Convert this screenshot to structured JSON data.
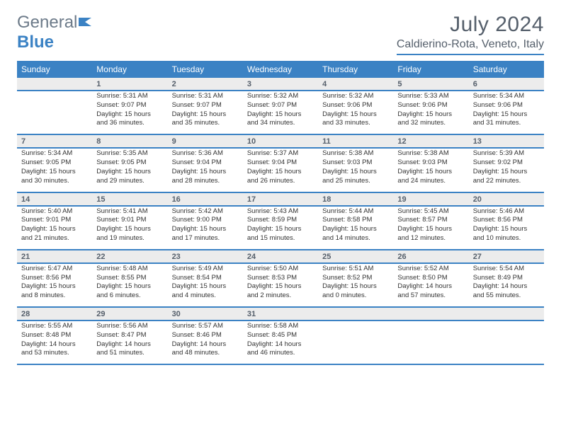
{
  "brand": {
    "text1": "General",
    "text2": "Blue"
  },
  "title": "July 2024",
  "location": "Caldierino-Rota, Veneto, Italy",
  "colors": {
    "header_bg": "#3b82c4",
    "header_text": "#ffffff",
    "daynum_bg": "#ececec",
    "rule": "#3b82c4",
    "body_text": "#333333",
    "muted_text": "#555f6b",
    "background": "#ffffff"
  },
  "fonts": {
    "body_size": 9.5,
    "header_size": 12,
    "title_size": 30,
    "location_size": 16
  },
  "day_headers": [
    "Sunday",
    "Monday",
    "Tuesday",
    "Wednesday",
    "Thursday",
    "Friday",
    "Saturday"
  ],
  "weeks": [
    [
      {
        "num": "",
        "sunrise": "",
        "sunset": "",
        "daylight": ""
      },
      {
        "num": "1",
        "sunrise": "Sunrise: 5:31 AM",
        "sunset": "Sunset: 9:07 PM",
        "daylight": "Daylight: 15 hours and 36 minutes."
      },
      {
        "num": "2",
        "sunrise": "Sunrise: 5:31 AM",
        "sunset": "Sunset: 9:07 PM",
        "daylight": "Daylight: 15 hours and 35 minutes."
      },
      {
        "num": "3",
        "sunrise": "Sunrise: 5:32 AM",
        "sunset": "Sunset: 9:07 PM",
        "daylight": "Daylight: 15 hours and 34 minutes."
      },
      {
        "num": "4",
        "sunrise": "Sunrise: 5:32 AM",
        "sunset": "Sunset: 9:06 PM",
        "daylight": "Daylight: 15 hours and 33 minutes."
      },
      {
        "num": "5",
        "sunrise": "Sunrise: 5:33 AM",
        "sunset": "Sunset: 9:06 PM",
        "daylight": "Daylight: 15 hours and 32 minutes."
      },
      {
        "num": "6",
        "sunrise": "Sunrise: 5:34 AM",
        "sunset": "Sunset: 9:06 PM",
        "daylight": "Daylight: 15 hours and 31 minutes."
      }
    ],
    [
      {
        "num": "7",
        "sunrise": "Sunrise: 5:34 AM",
        "sunset": "Sunset: 9:05 PM",
        "daylight": "Daylight: 15 hours and 30 minutes."
      },
      {
        "num": "8",
        "sunrise": "Sunrise: 5:35 AM",
        "sunset": "Sunset: 9:05 PM",
        "daylight": "Daylight: 15 hours and 29 minutes."
      },
      {
        "num": "9",
        "sunrise": "Sunrise: 5:36 AM",
        "sunset": "Sunset: 9:04 PM",
        "daylight": "Daylight: 15 hours and 28 minutes."
      },
      {
        "num": "10",
        "sunrise": "Sunrise: 5:37 AM",
        "sunset": "Sunset: 9:04 PM",
        "daylight": "Daylight: 15 hours and 26 minutes."
      },
      {
        "num": "11",
        "sunrise": "Sunrise: 5:38 AM",
        "sunset": "Sunset: 9:03 PM",
        "daylight": "Daylight: 15 hours and 25 minutes."
      },
      {
        "num": "12",
        "sunrise": "Sunrise: 5:38 AM",
        "sunset": "Sunset: 9:03 PM",
        "daylight": "Daylight: 15 hours and 24 minutes."
      },
      {
        "num": "13",
        "sunrise": "Sunrise: 5:39 AM",
        "sunset": "Sunset: 9:02 PM",
        "daylight": "Daylight: 15 hours and 22 minutes."
      }
    ],
    [
      {
        "num": "14",
        "sunrise": "Sunrise: 5:40 AM",
        "sunset": "Sunset: 9:01 PM",
        "daylight": "Daylight: 15 hours and 21 minutes."
      },
      {
        "num": "15",
        "sunrise": "Sunrise: 5:41 AM",
        "sunset": "Sunset: 9:01 PM",
        "daylight": "Daylight: 15 hours and 19 minutes."
      },
      {
        "num": "16",
        "sunrise": "Sunrise: 5:42 AM",
        "sunset": "Sunset: 9:00 PM",
        "daylight": "Daylight: 15 hours and 17 minutes."
      },
      {
        "num": "17",
        "sunrise": "Sunrise: 5:43 AM",
        "sunset": "Sunset: 8:59 PM",
        "daylight": "Daylight: 15 hours and 15 minutes."
      },
      {
        "num": "18",
        "sunrise": "Sunrise: 5:44 AM",
        "sunset": "Sunset: 8:58 PM",
        "daylight": "Daylight: 15 hours and 14 minutes."
      },
      {
        "num": "19",
        "sunrise": "Sunrise: 5:45 AM",
        "sunset": "Sunset: 8:57 PM",
        "daylight": "Daylight: 15 hours and 12 minutes."
      },
      {
        "num": "20",
        "sunrise": "Sunrise: 5:46 AM",
        "sunset": "Sunset: 8:56 PM",
        "daylight": "Daylight: 15 hours and 10 minutes."
      }
    ],
    [
      {
        "num": "21",
        "sunrise": "Sunrise: 5:47 AM",
        "sunset": "Sunset: 8:56 PM",
        "daylight": "Daylight: 15 hours and 8 minutes."
      },
      {
        "num": "22",
        "sunrise": "Sunrise: 5:48 AM",
        "sunset": "Sunset: 8:55 PM",
        "daylight": "Daylight: 15 hours and 6 minutes."
      },
      {
        "num": "23",
        "sunrise": "Sunrise: 5:49 AM",
        "sunset": "Sunset: 8:54 PM",
        "daylight": "Daylight: 15 hours and 4 minutes."
      },
      {
        "num": "24",
        "sunrise": "Sunrise: 5:50 AM",
        "sunset": "Sunset: 8:53 PM",
        "daylight": "Daylight: 15 hours and 2 minutes."
      },
      {
        "num": "25",
        "sunrise": "Sunrise: 5:51 AM",
        "sunset": "Sunset: 8:52 PM",
        "daylight": "Daylight: 15 hours and 0 minutes."
      },
      {
        "num": "26",
        "sunrise": "Sunrise: 5:52 AM",
        "sunset": "Sunset: 8:50 PM",
        "daylight": "Daylight: 14 hours and 57 minutes."
      },
      {
        "num": "27",
        "sunrise": "Sunrise: 5:54 AM",
        "sunset": "Sunset: 8:49 PM",
        "daylight": "Daylight: 14 hours and 55 minutes."
      }
    ],
    [
      {
        "num": "28",
        "sunrise": "Sunrise: 5:55 AM",
        "sunset": "Sunset: 8:48 PM",
        "daylight": "Daylight: 14 hours and 53 minutes."
      },
      {
        "num": "29",
        "sunrise": "Sunrise: 5:56 AM",
        "sunset": "Sunset: 8:47 PM",
        "daylight": "Daylight: 14 hours and 51 minutes."
      },
      {
        "num": "30",
        "sunrise": "Sunrise: 5:57 AM",
        "sunset": "Sunset: 8:46 PM",
        "daylight": "Daylight: 14 hours and 48 minutes."
      },
      {
        "num": "31",
        "sunrise": "Sunrise: 5:58 AM",
        "sunset": "Sunset: 8:45 PM",
        "daylight": "Daylight: 14 hours and 46 minutes."
      },
      {
        "num": "",
        "sunrise": "",
        "sunset": "",
        "daylight": ""
      },
      {
        "num": "",
        "sunrise": "",
        "sunset": "",
        "daylight": ""
      },
      {
        "num": "",
        "sunrise": "",
        "sunset": "",
        "daylight": ""
      }
    ]
  ]
}
